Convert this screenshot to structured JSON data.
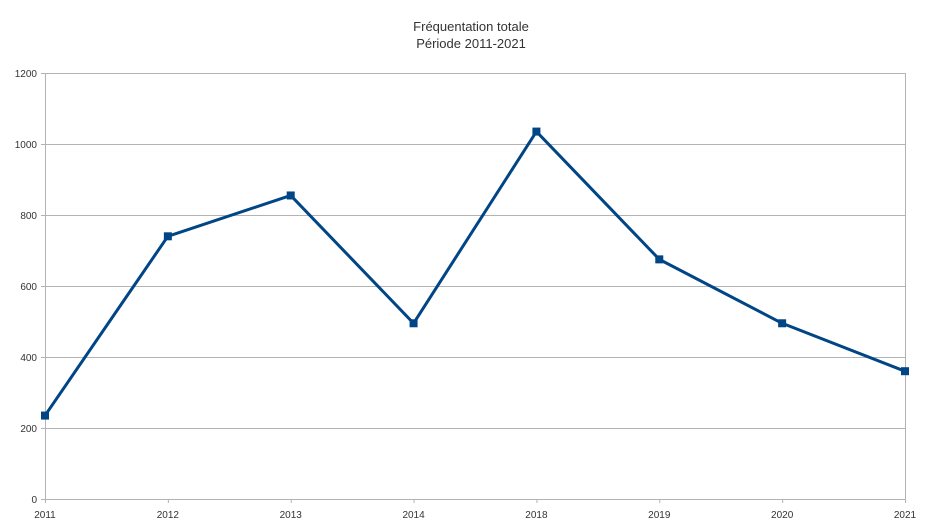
{
  "chart_data": {
    "type": "line",
    "title": "Fréquentation totale",
    "subtitle": "Période 2011-2021",
    "xlabel": "",
    "ylabel": "",
    "categories": [
      "2011",
      "2012",
      "2013",
      "2014",
      "2018",
      "2019",
      "2020",
      "2021"
    ],
    "series": [
      {
        "values": [
          235,
          740,
          855,
          495,
          1035,
          675,
          495,
          360
        ]
      }
    ],
    "ylim": [
      0,
      1200
    ],
    "yticks": [
      0,
      200,
      400,
      600,
      800,
      1000,
      1200
    ],
    "grid": "horizontal",
    "legend": "none",
    "series_color": "#004586",
    "grid_color": "#b3b3b3",
    "marker": "square"
  }
}
